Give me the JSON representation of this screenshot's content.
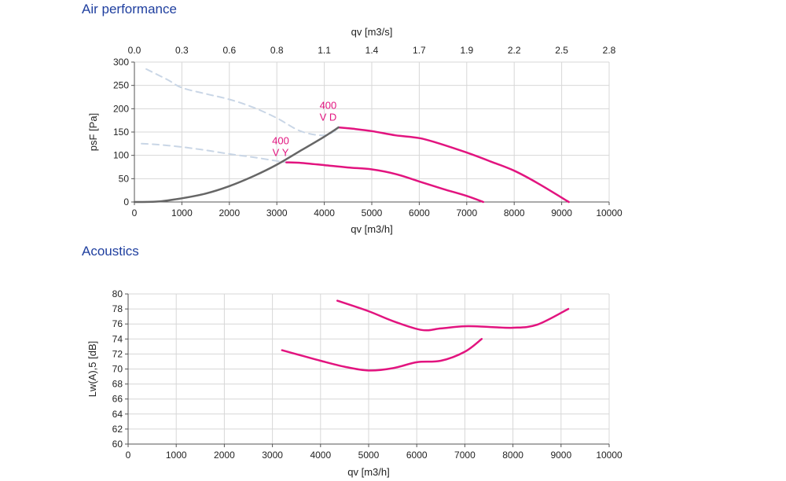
{
  "sections": {
    "performance_title": "Air performance",
    "acoustics_title": "Acoustics"
  },
  "colors": {
    "magenta": "#e2147f",
    "operating": "#666666",
    "dashed": "#c9d6e6",
    "grid": "#d7d7d7",
    "title_blue": "#1f3f9f"
  },
  "chart_data": [
    {
      "id": "performance",
      "type": "line",
      "xlabel": "qv [m3/h]",
      "ylabel": "psF [Pa]",
      "xlim": [
        0,
        10000
      ],
      "ylim": [
        0,
        300
      ],
      "x_ticks": [
        0,
        1000,
        2000,
        3000,
        4000,
        5000,
        6000,
        7000,
        8000,
        9000,
        10000
      ],
      "y_ticks": [
        0,
        50,
        100,
        150,
        200,
        250,
        300
      ],
      "x_top": {
        "label": "qv [m3/s]",
        "ticks": [
          "0.0",
          "0.3",
          "0.6",
          "0.8",
          "1.1",
          "1.4",
          "1.7",
          "1.9",
          "2.2",
          "2.5",
          "2.8"
        ]
      },
      "grid": true,
      "annotations": [
        {
          "id": "vd",
          "lines": [
            "400",
            "V D"
          ],
          "x": 4080,
          "y": 200
        },
        {
          "id": "vy",
          "lines": [
            "400",
            "V Y"
          ],
          "x": 3080,
          "y": 124
        }
      ],
      "series": [
        {
          "id": "vd",
          "style": "solid",
          "color": "magenta",
          "x": [
            4300,
            4600,
            5000,
            5500,
            6000,
            6400,
            7000,
            7500,
            8000,
            8500,
            9150
          ],
          "y": [
            160,
            157,
            152,
            143,
            137,
            126,
            106,
            87,
            67,
            40,
            0
          ]
        },
        {
          "id": "vy",
          "style": "solid",
          "color": "magenta",
          "x": [
            3200,
            3500,
            4000,
            4500,
            5000,
            5500,
            6000,
            6500,
            7000,
            7350
          ],
          "y": [
            85,
            84,
            79,
            74,
            70,
            60,
            44,
            28,
            13,
            0
          ]
        },
        {
          "id": "system",
          "style": "solid",
          "color": "operating",
          "x": [
            0,
            500,
            1000,
            1500,
            2000,
            2500,
            3000,
            3500,
            4000,
            4300
          ],
          "y": [
            0,
            1,
            8,
            18,
            34,
            55,
            80,
            110,
            140,
            160
          ]
        },
        {
          "id": "vd-stall",
          "style": "dashed",
          "color": "dashed",
          "x": [
            250,
            700,
            1000,
            1500,
            2000,
            2500,
            3000,
            3500,
            4000,
            4300
          ],
          "y": [
            285,
            262,
            245,
            232,
            220,
            203,
            180,
            152,
            143,
            158
          ]
        },
        {
          "id": "vy-stall",
          "style": "dashed",
          "color": "dashed",
          "x": [
            150,
            500,
            1000,
            1500,
            2000,
            2500,
            3000,
            3200
          ],
          "y": [
            125,
            123,
            118,
            111,
            103,
            96,
            88,
            85
          ]
        }
      ]
    },
    {
      "id": "acoustics",
      "type": "line",
      "xlabel": "qv [m3/h]",
      "ylabel": "Lw(A),5 [dB]",
      "xlim": [
        0,
        10000
      ],
      "ylim": [
        60,
        80
      ],
      "x_ticks": [
        0,
        1000,
        2000,
        3000,
        4000,
        5000,
        6000,
        7000,
        8000,
        9000,
        10000
      ],
      "y_ticks": [
        60,
        62,
        64,
        66,
        68,
        70,
        72,
        74,
        76,
        78,
        80
      ],
      "grid": true,
      "series": [
        {
          "id": "vd",
          "style": "solid",
          "color": "magenta",
          "x": [
            4350,
            5000,
            5500,
            6100,
            6500,
            7000,
            7500,
            8000,
            8500,
            9150
          ],
          "y": [
            79.1,
            77.7,
            76.4,
            75.2,
            75.4,
            75.7,
            75.6,
            75.5,
            75.9,
            78.0
          ]
        },
        {
          "id": "vy",
          "style": "solid",
          "color": "magenta",
          "x": [
            3200,
            3600,
            4000,
            4500,
            5000,
            5500,
            6000,
            6500,
            7000,
            7350
          ],
          "y": [
            72.5,
            71.8,
            71.1,
            70.3,
            69.8,
            70.1,
            70.9,
            71.1,
            72.3,
            74.0
          ]
        }
      ]
    }
  ]
}
